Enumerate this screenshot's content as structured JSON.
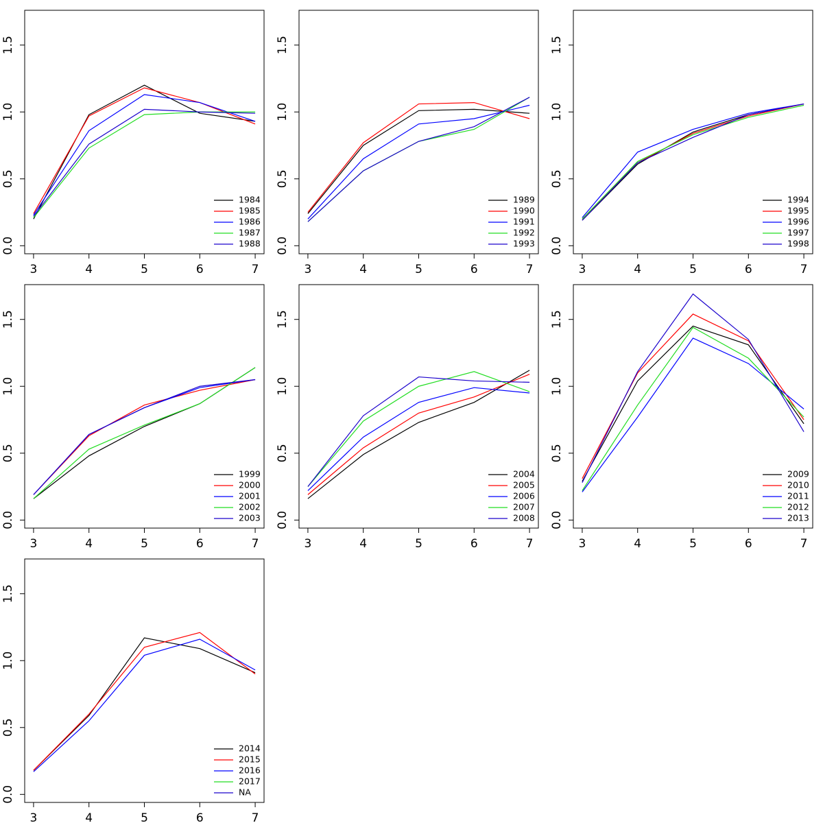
{
  "chart_data": [
    {
      "type": "line",
      "x": [
        3,
        4,
        5,
        6,
        7
      ],
      "xlim": [
        2.84,
        7.16
      ],
      "ylim": [
        -0.06,
        1.76
      ],
      "xticks": [
        3,
        4,
        5,
        6,
        7
      ],
      "yticks": [
        {
          "value": 0,
          "label": "0.0"
        },
        0.5,
        {
          "value": 1,
          "label": "1.0"
        },
        1.5
      ],
      "legend": "bottomright",
      "series": [
        {
          "name": "1984",
          "color": "#000000",
          "values": [
            0.2,
            0.98,
            1.2,
            0.99,
            0.93
          ]
        },
        {
          "name": "1985",
          "color": "#ff0000",
          "values": [
            0.24,
            0.97,
            1.18,
            1.07,
            0.91
          ]
        },
        {
          "name": "1986",
          "color": "#0000ff",
          "values": [
            0.23,
            0.86,
            1.13,
            1.07,
            0.93
          ]
        },
        {
          "name": "1987",
          "color": "#22dd22",
          "values": [
            0.21,
            0.73,
            0.98,
            1.0,
            1.0
          ]
        },
        {
          "name": "1988",
          "color": "#1a00cc",
          "values": [
            0.22,
            0.76,
            1.02,
            1.0,
            0.99
          ]
        }
      ]
    },
    {
      "type": "line",
      "x": [
        3,
        4,
        5,
        6,
        7
      ],
      "xlim": [
        2.84,
        7.16
      ],
      "ylim": [
        -0.06,
        1.76
      ],
      "xticks": [
        3,
        4,
        5,
        6,
        7
      ],
      "yticks": [
        {
          "value": 0,
          "label": "0.0"
        },
        0.5,
        {
          "value": 1,
          "label": "1.0"
        },
        1.5
      ],
      "legend": "bottomright",
      "series": [
        {
          "name": "1989",
          "color": "#000000",
          "values": [
            0.24,
            0.75,
            1.01,
            1.02,
            0.99
          ]
        },
        {
          "name": "1990",
          "color": "#ff0000",
          "values": [
            0.25,
            0.77,
            1.06,
            1.07,
            0.95
          ]
        },
        {
          "name": "1991",
          "color": "#0000ff",
          "values": [
            0.2,
            0.65,
            0.91,
            0.95,
            1.05
          ]
        },
        {
          "name": "1992",
          "color": "#22dd22",
          "values": [
            0.18,
            0.56,
            0.78,
            0.87,
            1.11
          ]
        },
        {
          "name": "1993",
          "color": "#1a00cc",
          "values": [
            0.18,
            0.56,
            0.78,
            0.89,
            1.11
          ]
        }
      ]
    },
    {
      "type": "line",
      "x": [
        3,
        4,
        5,
        6,
        7
      ],
      "xlim": [
        2.84,
        7.16
      ],
      "ylim": [
        -0.06,
        1.76
      ],
      "xticks": [
        3,
        4,
        5,
        6,
        7
      ],
      "yticks": [
        {
          "value": 0,
          "label": "0.0"
        },
        0.5,
        {
          "value": 1,
          "label": "1.0"
        },
        1.5
      ],
      "legend": "bottomright",
      "series": [
        {
          "name": "1994",
          "color": "#000000",
          "values": [
            0.19,
            0.61,
            0.85,
            0.98,
            1.06
          ]
        },
        {
          "name": "1995",
          "color": "#ff0000",
          "values": [
            0.2,
            0.62,
            0.84,
            0.97,
            1.06
          ]
        },
        {
          "name": "1996",
          "color": "#0000ff",
          "values": [
            0.21,
            0.7,
            0.87,
            0.99,
            1.06
          ]
        },
        {
          "name": "1997",
          "color": "#22dd22",
          "values": [
            0.2,
            0.63,
            0.83,
            0.96,
            1.05
          ]
        },
        {
          "name": "1998",
          "color": "#1a00cc",
          "values": [
            0.19,
            0.62,
            0.81,
            0.98,
            1.06
          ]
        }
      ]
    },
    {
      "type": "line",
      "x": [
        3,
        4,
        5,
        6,
        7
      ],
      "xlim": [
        2.84,
        7.16
      ],
      "ylim": [
        -0.06,
        1.76
      ],
      "xticks": [
        3,
        4,
        5,
        6,
        7
      ],
      "yticks": [
        {
          "value": 0,
          "label": "0.0"
        },
        0.5,
        {
          "value": 1,
          "label": "1.0"
        },
        1.5
      ],
      "legend": "bottomright",
      "series": [
        {
          "name": "1999",
          "color": "#000000",
          "values": [
            0.16,
            0.48,
            0.7,
            0.87,
            1.14
          ]
        },
        {
          "name": "2000",
          "color": "#ff0000",
          "values": [
            0.19,
            0.63,
            0.86,
            0.97,
            1.05
          ]
        },
        {
          "name": "2001",
          "color": "#0000ff",
          "values": [
            0.19,
            0.64,
            0.84,
            0.99,
            1.05
          ]
        },
        {
          "name": "2002",
          "color": "#22dd22",
          "values": [
            0.16,
            0.53,
            0.71,
            0.87,
            1.14
          ]
        },
        {
          "name": "2003",
          "color": "#1a00cc",
          "values": [
            0.19,
            0.64,
            0.84,
            1.0,
            1.05
          ]
        }
      ]
    },
    {
      "type": "line",
      "x": [
        3,
        4,
        5,
        6,
        7
      ],
      "xlim": [
        2.84,
        7.16
      ],
      "ylim": [
        -0.06,
        1.76
      ],
      "xticks": [
        3,
        4,
        5,
        6,
        7
      ],
      "yticks": [
        {
          "value": 0,
          "label": "0.0"
        },
        0.5,
        {
          "value": 1,
          "label": "1.0"
        },
        1.5
      ],
      "legend": "bottomright",
      "series": [
        {
          "name": "2004",
          "color": "#000000",
          "values": [
            0.16,
            0.49,
            0.73,
            0.88,
            1.12
          ]
        },
        {
          "name": "2005",
          "color": "#ff0000",
          "values": [
            0.19,
            0.54,
            0.8,
            0.92,
            1.09
          ]
        },
        {
          "name": "2006",
          "color": "#0000ff",
          "values": [
            0.22,
            0.62,
            0.88,
            0.99,
            0.95
          ]
        },
        {
          "name": "2007",
          "color": "#22dd22",
          "values": [
            0.25,
            0.74,
            1.0,
            1.11,
            0.96
          ]
        },
        {
          "name": "2008",
          "color": "#1a00cc",
          "values": [
            0.25,
            0.78,
            1.07,
            1.04,
            1.03
          ]
        }
      ]
    },
    {
      "type": "line",
      "x": [
        3,
        4,
        5,
        6,
        7
      ],
      "xlim": [
        2.84,
        7.16
      ],
      "ylim": [
        -0.06,
        1.76
      ],
      "xticks": [
        3,
        4,
        5,
        6,
        7
      ],
      "yticks": [
        {
          "value": 0,
          "label": "0.0"
        },
        0.5,
        {
          "value": 1,
          "label": "1.0"
        },
        1.5
      ],
      "legend": "bottomright",
      "series": [
        {
          "name": "2009",
          "color": "#000000",
          "values": [
            0.29,
            1.04,
            1.45,
            1.31,
            0.72
          ]
        },
        {
          "name": "2010",
          "color": "#ff0000",
          "values": [
            0.31,
            1.1,
            1.54,
            1.34,
            0.75
          ]
        },
        {
          "name": "2011",
          "color": "#0000ff",
          "values": [
            0.21,
            0.77,
            1.36,
            1.17,
            0.83
          ]
        },
        {
          "name": "2012",
          "color": "#22dd22",
          "values": [
            0.22,
            0.86,
            1.44,
            1.21,
            0.77
          ]
        },
        {
          "name": "2013",
          "color": "#1a00cc",
          "values": [
            0.28,
            1.11,
            1.69,
            1.35,
            0.66
          ]
        }
      ]
    },
    {
      "type": "line",
      "x": [
        3,
        4,
        5,
        6,
        7
      ],
      "xlim": [
        2.84,
        7.16
      ],
      "ylim": [
        -0.06,
        1.76
      ],
      "xticks": [
        3,
        4,
        5,
        6,
        7
      ],
      "yticks": [
        {
          "value": 0,
          "label": "0.0"
        },
        0.5,
        {
          "value": 1,
          "label": "1.0"
        },
        1.5
      ],
      "legend": "bottomright",
      "series": [
        {
          "name": "2014",
          "color": "#000000",
          "values": [
            0.18,
            0.59,
            1.17,
            1.09,
            0.91
          ]
        },
        {
          "name": "2015",
          "color": "#ff0000",
          "values": [
            0.18,
            0.6,
            1.1,
            1.21,
            0.9
          ]
        },
        {
          "name": "2016",
          "color": "#0000ff",
          "values": [
            0.17,
            0.55,
            1.04,
            1.16,
            0.93
          ]
        },
        {
          "name": "2017",
          "color": "#22dd22",
          "values": [
            null,
            null,
            null,
            null,
            null
          ]
        },
        {
          "name": "NA",
          "color": "#1a00cc",
          "values": [
            null,
            null,
            null,
            null,
            null
          ]
        }
      ]
    }
  ]
}
